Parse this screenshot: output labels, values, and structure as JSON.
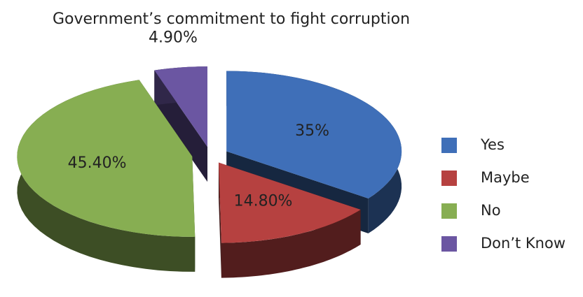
{
  "chart_data": {
    "type": "pie",
    "title": "Government’s commitment to fight corruption",
    "categories": [
      "Yes",
      "Maybe",
      "No",
      "Don’t Know"
    ],
    "values": [
      35,
      14.8,
      45.4,
      4.9
    ],
    "value_labels": [
      "35%",
      "14.80%",
      "45.40%",
      "4.90%"
    ],
    "colors": [
      "#3f6fb8",
      "#b64140",
      "#87ae52",
      "#6b56a2"
    ],
    "legend": "right"
  }
}
